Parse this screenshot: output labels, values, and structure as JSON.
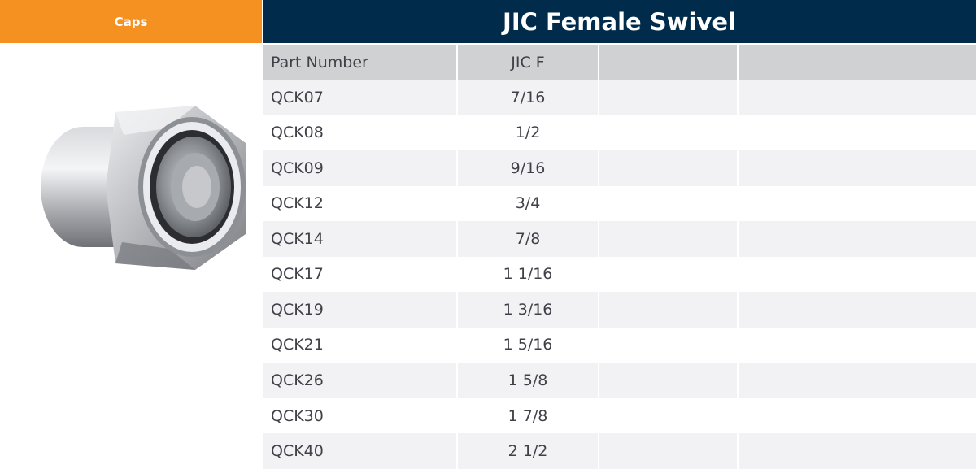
{
  "left_tab": {
    "label": "Caps"
  },
  "title": "JIC Female Swivel",
  "table": {
    "headers": [
      "Part Number",
      "JIC F",
      "",
      ""
    ],
    "rows": [
      [
        "QCK07",
        "7/16",
        "",
        ""
      ],
      [
        "QCK08",
        "1/2",
        "",
        ""
      ],
      [
        "QCK09",
        "9/16",
        "",
        ""
      ],
      [
        "QCK12",
        "3/4",
        "",
        ""
      ],
      [
        "QCK14",
        "7/8",
        "",
        ""
      ],
      [
        "QCK17",
        "1 1/16",
        "",
        ""
      ],
      [
        "QCK19",
        "1 3/16",
        "",
        ""
      ],
      [
        "QCK21",
        "1 5/16",
        "",
        ""
      ],
      [
        "QCK26",
        "1 5/8",
        "",
        ""
      ],
      [
        "QCK30",
        "1 7/8",
        "",
        ""
      ],
      [
        "QCK40",
        "2 1/2",
        "",
        ""
      ]
    ]
  },
  "colors": {
    "accent_orange": "#f59120",
    "title_navy": "#002b4b",
    "header_grey": "#d0d1d3",
    "row_stripe": "#f2f2f4",
    "text": "#404048"
  }
}
